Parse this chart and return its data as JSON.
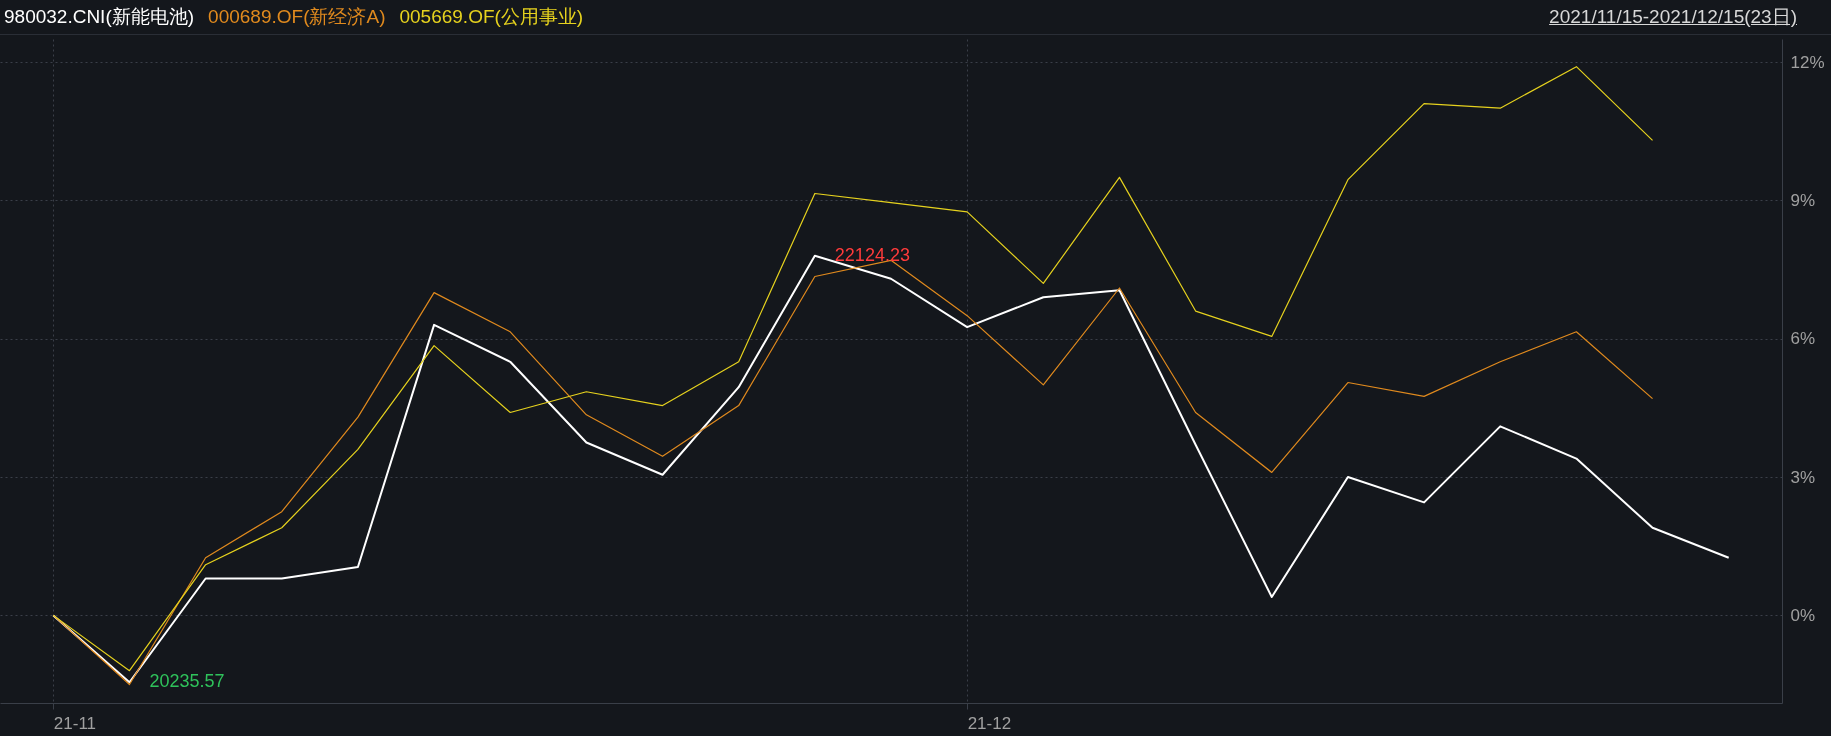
{
  "chart_data": {
    "type": "line",
    "subtitle": "2021/11/15-2021/12/15(23日)",
    "categories": [
      "21-11",
      null,
      null,
      null,
      null,
      null,
      null,
      null,
      null,
      null,
      null,
      null,
      "21-12",
      null,
      null,
      null,
      null,
      null,
      null,
      null,
      null,
      null,
      null
    ],
    "series": [
      {
        "name": "980032.CNI(新能电池)",
        "color": "#ffffff",
        "values": [
          0,
          -1.45,
          0.8,
          0.8,
          1.05,
          6.3,
          5.5,
          3.75,
          3.05,
          4.95,
          7.8,
          7.3,
          6.25,
          6.9,
          7.05,
          3.7,
          0.4,
          3.0,
          2.45,
          4.1,
          3.4,
          1.9,
          1.25
        ]
      },
      {
        "name": "000689.OF(新经济A)",
        "color": "#e08a1e",
        "values": [
          0,
          -1.5,
          1.25,
          2.25,
          4.3,
          7.0,
          6.15,
          4.35,
          3.45,
          4.55,
          7.35,
          7.7,
          6.5,
          5.0,
          7.1,
          4.4,
          3.1,
          5.05,
          4.75,
          5.5,
          6.15,
          4.7,
          null
        ]
      },
      {
        "name": "005669.OF(公用事业)",
        "color": "#e6d21e",
        "values": [
          0,
          -1.2,
          1.1,
          1.9,
          3.6,
          5.85,
          4.4,
          4.85,
          4.55,
          5.5,
          9.15,
          8.95,
          8.75,
          7.2,
          9.5,
          6.6,
          6.05,
          9.45,
          11.1,
          11.0,
          11.9,
          10.3,
          null
        ]
      }
    ],
    "ylim": [
      -1.9,
      12.5
    ],
    "yticks": [
      {
        "value": 0,
        "label": "0%"
      },
      {
        "value": 3,
        "label": "3%"
      },
      {
        "value": 6,
        "label": "6%"
      },
      {
        "value": 9,
        "label": "9%"
      },
      {
        "value": 12,
        "label": "12%"
      }
    ],
    "annotations": [
      "22124.23",
      "20235.57"
    ],
    "grid": true,
    "legend": "top left",
    "line_style": "solid",
    "marker": "none"
  }
}
